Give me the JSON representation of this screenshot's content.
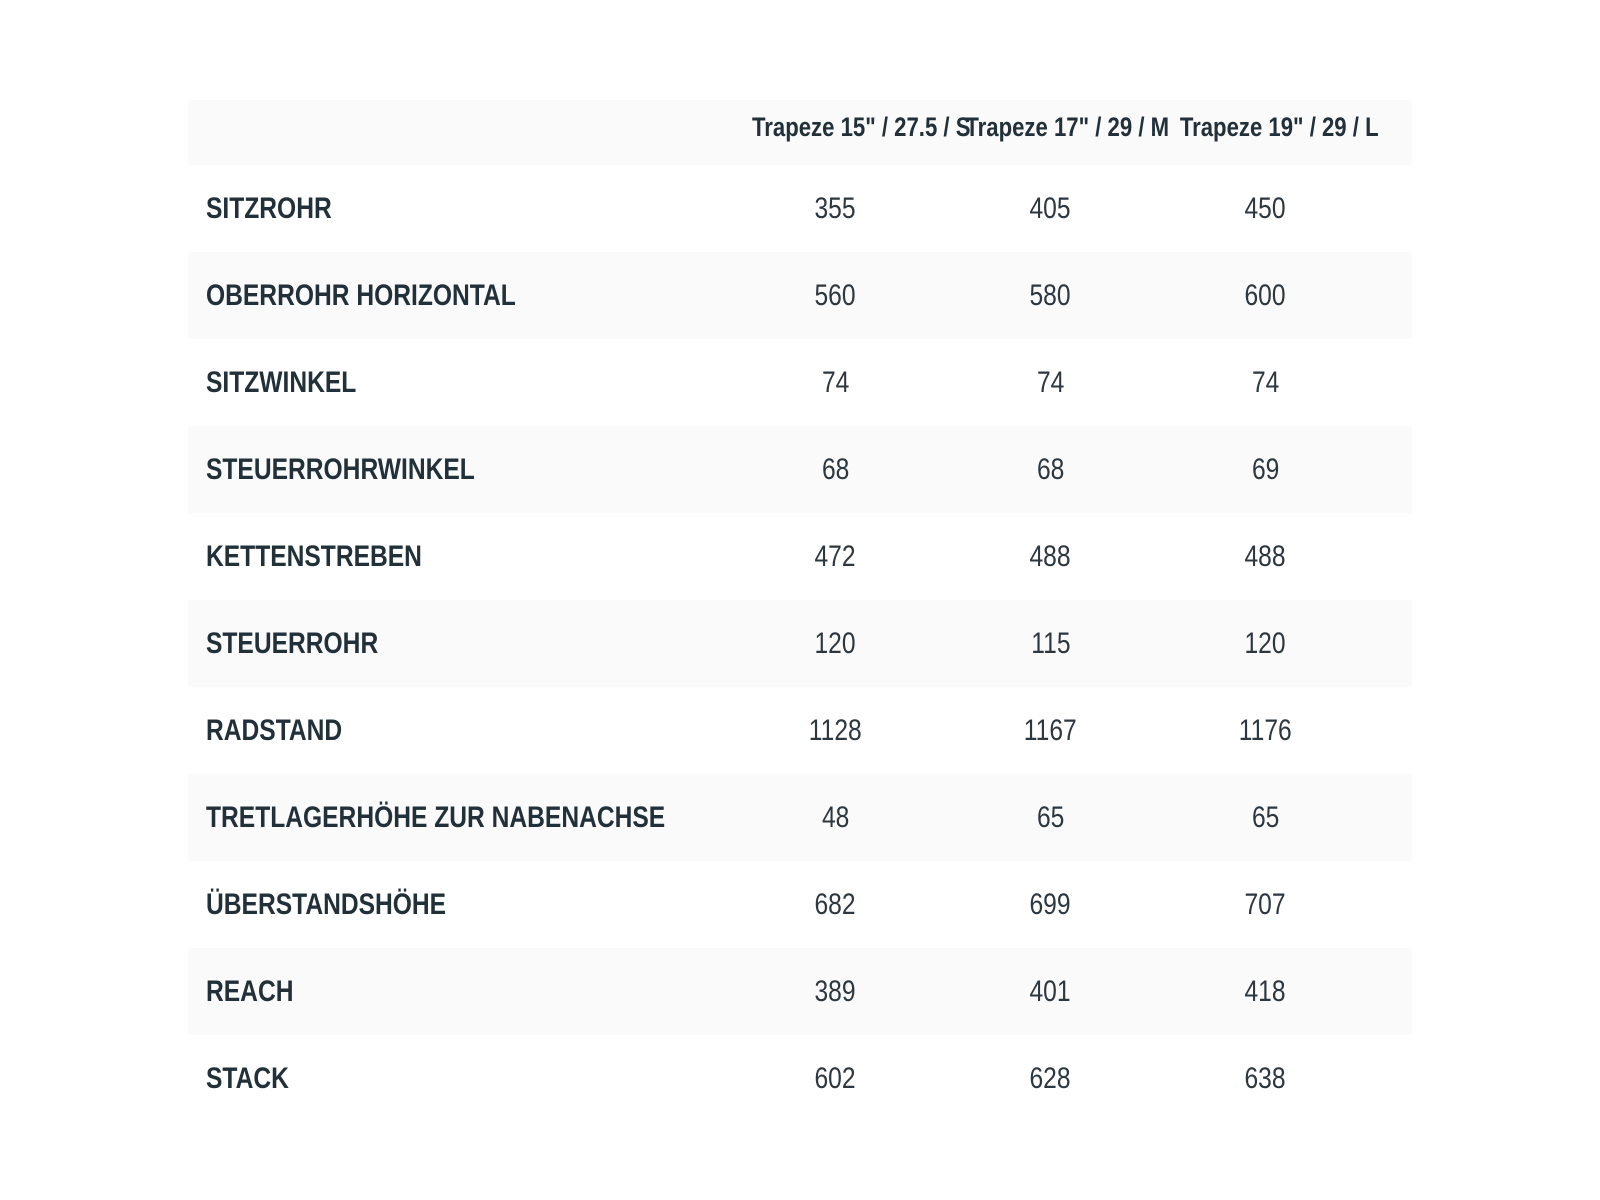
{
  "colors": {
    "text_dark": "#22303a",
    "text_value": "#2c3740",
    "row_stripe": "#fafafa",
    "background": "#ffffff"
  },
  "chart_data": {
    "type": "table",
    "column_headers": [
      "Trapeze 15\" / 27.5 / S",
      "Trapeze 17\" / 29 / M",
      "Trapeze 19\" / 29 / L"
    ],
    "rows": [
      {
        "label": "SITZROHR",
        "values": [
          "355",
          "405",
          "450"
        ]
      },
      {
        "label": "OBERROHR HORIZONTAL",
        "values": [
          "560",
          "580",
          "600"
        ]
      },
      {
        "label": "SITZWINKEL",
        "values": [
          "74",
          "74",
          "74"
        ]
      },
      {
        "label": "STEUERROHRWINKEL",
        "values": [
          "68",
          "68",
          "69"
        ]
      },
      {
        "label": "KETTENSTREBEN",
        "values": [
          "472",
          "488",
          "488"
        ]
      },
      {
        "label": "STEUERROHR",
        "values": [
          "120",
          "115",
          "120"
        ]
      },
      {
        "label": "RADSTAND",
        "values": [
          "1128",
          "1167",
          "1176"
        ]
      },
      {
        "label": "TRETLAGERHÖHE ZUR NABENACHSE",
        "values": [
          "48",
          "65",
          "65"
        ]
      },
      {
        "label": "ÜBERSTANDSHÖHE",
        "values": [
          "682",
          "699",
          "707"
        ]
      },
      {
        "label": "REACH",
        "values": [
          "389",
          "401",
          "418"
        ]
      },
      {
        "label": "STACK",
        "values": [
          "602",
          "628",
          "638"
        ]
      }
    ]
  }
}
